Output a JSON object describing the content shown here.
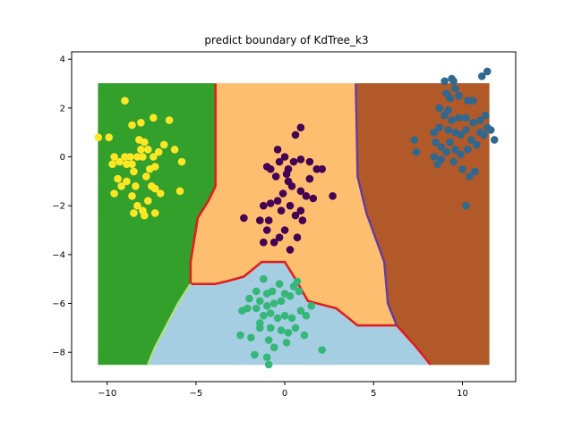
{
  "chart_data": {
    "type": "scatter",
    "title": "predict boundary of KdTree_k3",
    "xlabel": "",
    "ylabel": "",
    "xlim": [
      -12.0,
      13.0
    ],
    "ylim": [
      -9.2,
      4.3
    ],
    "grid": false,
    "xticks": [
      -10,
      -5,
      0,
      5,
      10
    ],
    "yticks": [
      -8,
      -6,
      -4,
      -2,
      0,
      2,
      4
    ],
    "region_colors": {
      "left": "#33a02c",
      "top": "#fdbf6f",
      "bottom": "#a6cee3",
      "right": "#b15928"
    },
    "regions": [
      {
        "class": "left",
        "polygon": [
          [
            -10.5,
            3.0
          ],
          [
            -3.9,
            3.0
          ],
          [
            -3.9,
            -1.2
          ],
          [
            -4.3,
            -1.8
          ],
          [
            -4.9,
            -2.5
          ],
          [
            -5.3,
            -4.3
          ],
          [
            -5.3,
            -5.2
          ],
          [
            -6.0,
            -6.0
          ],
          [
            -7.3,
            -7.8
          ],
          [
            -7.7,
            -8.5
          ],
          [
            -10.5,
            -8.5
          ]
        ]
      },
      {
        "class": "top",
        "polygon": [
          [
            -3.9,
            3.0
          ],
          [
            4.0,
            3.0
          ],
          [
            4.1,
            -0.8
          ],
          [
            4.6,
            -2.3
          ],
          [
            5.6,
            -4.3
          ],
          [
            5.8,
            -6.0
          ],
          [
            6.3,
            -6.9
          ],
          [
            4.1,
            -6.9
          ],
          [
            2.9,
            -6.2
          ],
          [
            1.3,
            -5.9
          ],
          [
            0.6,
            -5.0
          ],
          [
            0.0,
            -4.3
          ],
          [
            -1.3,
            -4.3
          ],
          [
            -2.3,
            -4.9
          ],
          [
            -3.3,
            -5.1
          ],
          [
            -3.9,
            -5.2
          ],
          [
            -5.3,
            -5.2
          ],
          [
            -5.3,
            -4.3
          ],
          [
            -4.9,
            -2.5
          ],
          [
            -4.3,
            -1.8
          ],
          [
            -3.9,
            -1.2
          ]
        ]
      },
      {
        "class": "bottom",
        "polygon": [
          [
            -7.7,
            -8.5
          ],
          [
            -7.3,
            -7.8
          ],
          [
            -6.0,
            -6.0
          ],
          [
            -5.3,
            -5.2
          ],
          [
            -3.9,
            -5.2
          ],
          [
            -3.3,
            -5.1
          ],
          [
            -2.3,
            -4.9
          ],
          [
            -1.3,
            -4.3
          ],
          [
            0.0,
            -4.3
          ],
          [
            0.6,
            -5.0
          ],
          [
            1.3,
            -5.9
          ],
          [
            2.9,
            -6.2
          ],
          [
            4.1,
            -6.9
          ],
          [
            6.3,
            -6.9
          ],
          [
            7.3,
            -7.7
          ],
          [
            8.2,
            -8.5
          ]
        ]
      },
      {
        "class": "right",
        "polygon": [
          [
            4.0,
            3.0
          ],
          [
            11.5,
            3.0
          ],
          [
            11.5,
            -8.5
          ],
          [
            8.2,
            -8.5
          ],
          [
            7.3,
            -7.7
          ],
          [
            6.3,
            -6.9
          ],
          [
            5.8,
            -6.0
          ],
          [
            5.6,
            -4.3
          ],
          [
            4.6,
            -2.3
          ],
          [
            4.1,
            -0.8
          ]
        ]
      }
    ],
    "boundaries": [
      {
        "color": "#e31a1c",
        "points": [
          [
            -3.9,
            3.0
          ],
          [
            -3.9,
            -1.2
          ],
          [
            -4.3,
            -1.8
          ],
          [
            -4.9,
            -2.5
          ],
          [
            -5.3,
            -4.3
          ],
          [
            -5.3,
            -5.2
          ],
          [
            -3.9,
            -5.2
          ],
          [
            -3.3,
            -5.1
          ],
          [
            -2.3,
            -4.9
          ],
          [
            -1.3,
            -4.3
          ],
          [
            0.0,
            -4.3
          ],
          [
            0.6,
            -5.0
          ],
          [
            1.3,
            -5.9
          ],
          [
            2.9,
            -6.2
          ],
          [
            4.1,
            -6.9
          ],
          [
            6.3,
            -6.9
          ],
          [
            7.3,
            -7.7
          ],
          [
            8.2,
            -8.5
          ]
        ]
      },
      {
        "color": "#6a3d9a",
        "points": [
          [
            4.0,
            3.0
          ],
          [
            4.1,
            -0.8
          ],
          [
            4.6,
            -2.3
          ],
          [
            5.6,
            -4.3
          ],
          [
            5.8,
            -6.0
          ],
          [
            6.3,
            -6.9
          ]
        ]
      },
      {
        "color": "#b2df8a",
        "points": [
          [
            -7.7,
            -8.5
          ],
          [
            -7.3,
            -7.8
          ],
          [
            -6.0,
            -6.0
          ],
          [
            -5.3,
            -5.2
          ]
        ]
      }
    ],
    "series": [
      {
        "color": "#fde725",
        "points": [
          [
            -10.5,
            0.8
          ],
          [
            -9.9,
            0.8
          ],
          [
            -9.0,
            2.3
          ],
          [
            -8.6,
            1.3
          ],
          [
            -8.1,
            1.4
          ],
          [
            -7.4,
            1.6
          ],
          [
            -6.5,
            1.5
          ],
          [
            -9.6,
            0.0
          ],
          [
            -9.7,
            -0.3
          ],
          [
            -9.3,
            -0.2
          ],
          [
            -9.0,
            0.0
          ],
          [
            -8.7,
            0.0
          ],
          [
            -8.6,
            -0.3
          ],
          [
            -8.5,
            -0.6
          ],
          [
            -8.3,
            0.0
          ],
          [
            -8.2,
            0.7
          ],
          [
            -8.1,
            0.3
          ],
          [
            -7.9,
            0.6
          ],
          [
            -7.7,
            0.3
          ],
          [
            -7.4,
            0.0
          ],
          [
            -7.3,
            -0.4
          ],
          [
            -7.1,
            0.2
          ],
          [
            -6.8,
            0.5
          ],
          [
            -6.2,
            0.3
          ],
          [
            -5.8,
            -0.2
          ],
          [
            -5.9,
            -1.4
          ],
          [
            -9.6,
            -1.5
          ],
          [
            -9.2,
            -1.2
          ],
          [
            -8.9,
            -1.0
          ],
          [
            -8.6,
            -1.6
          ],
          [
            -8.3,
            -2.0
          ],
          [
            -8.0,
            -2.2
          ],
          [
            -7.7,
            -1.8
          ],
          [
            -7.5,
            -1.2
          ],
          [
            -7.3,
            -1.3
          ],
          [
            -7.0,
            -1.5
          ],
          [
            -8.5,
            -2.3
          ],
          [
            -7.9,
            -2.4
          ],
          [
            -7.3,
            -2.3
          ],
          [
            -8.9,
            -0.3
          ],
          [
            -7.8,
            -0.8
          ],
          [
            -8.4,
            -1.2
          ],
          [
            -8.0,
            0.0
          ],
          [
            -7.6,
            -0.5
          ],
          [
            -9.4,
            -0.9
          ]
        ]
      },
      {
        "color": "#440154",
        "points": [
          [
            0.9,
            1.2
          ],
          [
            0.6,
            0.9
          ],
          [
            -0.4,
            0.3
          ],
          [
            -1.0,
            -0.4
          ],
          [
            -0.8,
            -0.5
          ],
          [
            -0.3,
            -0.2
          ],
          [
            0.0,
            0.0
          ],
          [
            0.2,
            -0.5
          ],
          [
            0.5,
            -0.2
          ],
          [
            0.9,
            -0.1
          ],
          [
            1.4,
            -0.2
          ],
          [
            1.8,
            -0.5
          ],
          [
            2.1,
            -0.5
          ],
          [
            -0.5,
            -0.8
          ],
          [
            0.2,
            -1.0
          ],
          [
            0.4,
            -1.2
          ],
          [
            -0.1,
            -1.5
          ],
          [
            0.9,
            -1.4
          ],
          [
            1.2,
            -1.6
          ],
          [
            1.6,
            -1.7
          ],
          [
            2.7,
            -1.6
          ],
          [
            -1.2,
            -2.0
          ],
          [
            -0.8,
            -1.9
          ],
          [
            -0.4,
            -1.8
          ],
          [
            -0.2,
            -2.2
          ],
          [
            0.3,
            -2.0
          ],
          [
            0.6,
            -2.4
          ],
          [
            0.9,
            -2.2
          ],
          [
            1.0,
            -2.6
          ],
          [
            -0.9,
            -2.6
          ],
          [
            -1.4,
            -2.6
          ],
          [
            -1.0,
            -3.0
          ],
          [
            -0.6,
            -3.5
          ],
          [
            -0.3,
            -3.3
          ],
          [
            0.3,
            -3.8
          ],
          [
            0.0,
            -3.0
          ],
          [
            -2.3,
            -2.5
          ],
          [
            -1.2,
            -3.5
          ],
          [
            0.7,
            -3.3
          ],
          [
            1.4,
            -0.9
          ],
          [
            0.1,
            -0.7
          ]
        ]
      },
      {
        "color": "#35b779",
        "points": [
          [
            0.7,
            -5.1
          ],
          [
            0.8,
            -5.5
          ],
          [
            -1.2,
            -5.0
          ],
          [
            -1.0,
            -5.6
          ],
          [
            -0.7,
            -5.5
          ],
          [
            -0.3,
            -5.2
          ],
          [
            0.0,
            -5.6
          ],
          [
            0.3,
            -5.7
          ],
          [
            -0.2,
            -5.9
          ],
          [
            -0.6,
            -6.0
          ],
          [
            -1.0,
            -6.1
          ],
          [
            -1.4,
            -5.9
          ],
          [
            -2.0,
            -5.8
          ],
          [
            -2.4,
            -6.3
          ],
          [
            -1.6,
            -6.2
          ],
          [
            -1.2,
            -6.5
          ],
          [
            -0.8,
            -6.4
          ],
          [
            -0.4,
            -6.6
          ],
          [
            0.0,
            -6.5
          ],
          [
            0.4,
            -6.6
          ],
          [
            0.9,
            -6.3
          ],
          [
            1.2,
            -6.5
          ],
          [
            1.5,
            -6.1
          ],
          [
            -1.4,
            -6.8
          ],
          [
            -0.8,
            -7.0
          ],
          [
            -0.2,
            -7.1
          ],
          [
            0.2,
            -7.2
          ],
          [
            0.6,
            -7.0
          ],
          [
            1.1,
            -7.3
          ],
          [
            -2.1,
            -6.2
          ],
          [
            -2.5,
            -7.3
          ],
          [
            -1.9,
            -7.4
          ],
          [
            -1.4,
            -7.0
          ],
          [
            -0.9,
            -7.5
          ],
          [
            -0.6,
            -7.8
          ],
          [
            0.1,
            -7.6
          ],
          [
            -1.7,
            -8.1
          ],
          [
            -1.0,
            -8.2
          ],
          [
            -0.9,
            -8.5
          ],
          [
            2.1,
            -7.9
          ],
          [
            -1.6,
            -5.5
          ],
          [
            0.5,
            -5.3
          ]
        ]
      },
      {
        "color": "#31688e",
        "points": [
          [
            9.0,
            3.1
          ],
          [
            9.4,
            3.2
          ],
          [
            9.5,
            3.1
          ],
          [
            9.6,
            2.8
          ],
          [
            9.1,
            2.6
          ],
          [
            9.3,
            2.4
          ],
          [
            9.8,
            2.5
          ],
          [
            10.3,
            2.3
          ],
          [
            10.6,
            2.3
          ],
          [
            11.1,
            3.3
          ],
          [
            11.4,
            3.5
          ],
          [
            8.7,
            2.0
          ],
          [
            9.2,
            1.9
          ],
          [
            9.0,
            1.7
          ],
          [
            9.4,
            1.5
          ],
          [
            9.8,
            1.6
          ],
          [
            10.2,
            1.6
          ],
          [
            10.6,
            1.4
          ],
          [
            11.0,
            1.5
          ],
          [
            11.3,
            1.7
          ],
          [
            8.4,
            1.0
          ],
          [
            8.7,
            1.2
          ],
          [
            9.2,
            1.1
          ],
          [
            9.6,
            1.0
          ],
          [
            9.9,
            0.9
          ],
          [
            10.2,
            1.1
          ],
          [
            10.5,
            0.7
          ],
          [
            11.0,
            1.0
          ],
          [
            11.4,
            1.2
          ],
          [
            11.6,
            1.1
          ],
          [
            8.5,
            0.6
          ],
          [
            8.8,
            0.4
          ],
          [
            9.3,
            0.6
          ],
          [
            9.6,
            0.3
          ],
          [
            9.9,
            0.1
          ],
          [
            10.3,
            0.3
          ],
          [
            10.8,
            0.5
          ],
          [
            11.2,
            0.9
          ],
          [
            11.8,
            0.7
          ],
          [
            8.4,
            0.0
          ],
          [
            8.8,
            -0.1
          ],
          [
            9.1,
            0.2
          ],
          [
            8.6,
            -0.3
          ],
          [
            10.0,
            -0.5
          ],
          [
            10.4,
            -0.8
          ],
          [
            7.3,
            0.7
          ],
          [
            7.4,
            0.2
          ],
          [
            10.2,
            -2.0
          ],
          [
            9.5,
            -0.2
          ],
          [
            10.7,
            -0.6
          ]
        ]
      }
    ]
  }
}
